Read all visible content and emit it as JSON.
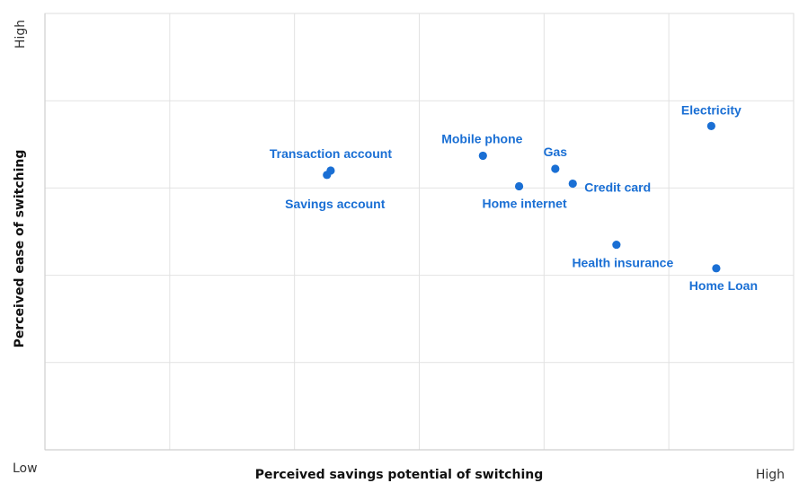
{
  "chart_data": {
    "type": "scatter",
    "title": "",
    "xlabel": "Perceived savings potential of switching",
    "ylabel": "Perceived ease of switching",
    "x_low_label": "Low",
    "x_high_label": "High",
    "y_high_label": "High",
    "xlim": [
      0,
      6
    ],
    "ylim": [
      0,
      5
    ],
    "grid": true,
    "colors": {
      "point": "#1a6fd4",
      "grid": "#e2e2e2"
    },
    "points": [
      {
        "label": "Electricity",
        "x": 5.34,
        "y": 3.71
      },
      {
        "label": "Transaction account",
        "x": 2.29,
        "y": 3.2
      },
      {
        "label": "Savings account",
        "x": 2.26,
        "y": 3.15
      },
      {
        "label": "Mobile phone",
        "x": 3.51,
        "y": 3.37
      },
      {
        "label": "Gas",
        "x": 4.09,
        "y": 3.22
      },
      {
        "label": "Home internet",
        "x": 3.8,
        "y": 3.02
      },
      {
        "label": "Credit card",
        "x": 4.23,
        "y": 3.05
      },
      {
        "label": "Health insurance",
        "x": 4.58,
        "y": 2.35
      },
      {
        "label": "Home Loan",
        "x": 5.38,
        "y": 2.08
      }
    ]
  }
}
